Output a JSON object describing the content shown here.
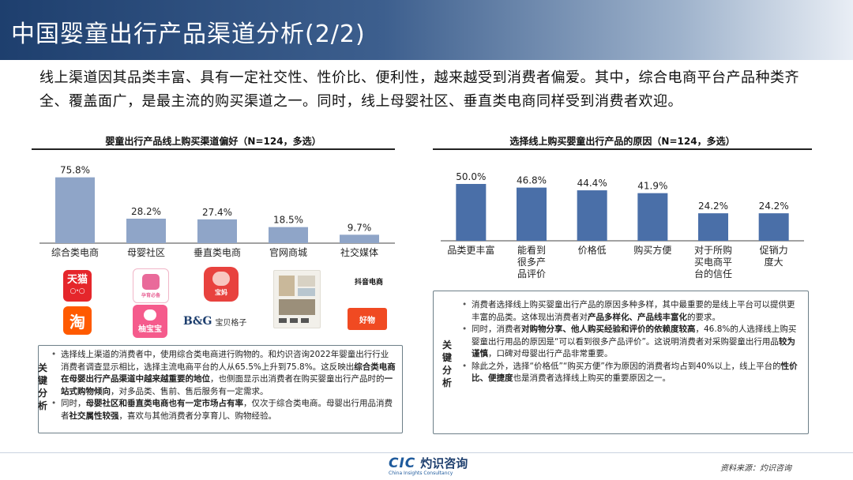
{
  "page_title": "中国婴童出行产品渠道分析(2/2)",
  "intro_text": "线上渠道因其品类丰富、具有一定社交性、性价比、便利性，越来越受到消费者偏爱。其中，综合电商平台产品种类齐全、覆盖面广，是最主流的购买渠道之一。同时，线上母婴社区、垂直类电商同样受到消费者欢迎。",
  "chart_data": [
    {
      "type": "bar",
      "title": "婴童出行产品线上购买渠道偏好（N=124，多选）",
      "categories": [
        "综合类电商",
        "母婴社区",
        "垂直类电商",
        "官网商城",
        "社交媒体"
      ],
      "values": [
        75.8,
        28.2,
        27.4,
        18.5,
        9.7
      ],
      "value_labels": [
        "75.8%",
        "28.2%",
        "27.4%",
        "18.5%",
        "9.7%"
      ],
      "color": "#8fa5c8",
      "ylim": [
        0,
        80
      ]
    },
    {
      "type": "bar",
      "title": "选择线上购买婴童出行产品的原因（N=124，多选）",
      "categories": [
        "品类更丰富",
        "能看到很多产品评价",
        "价格低",
        "购买方便",
        "对于所购买电商平台的信任",
        "促销力度大"
      ],
      "category_lines": [
        [
          "品类更丰富"
        ],
        [
          "能看到",
          "很多产",
          "品评价"
        ],
        [
          "价格低"
        ],
        [
          "购买方便"
        ],
        [
          "对于所购",
          "买电商平",
          "台的信任"
        ],
        [
          "促销力",
          "度大"
        ]
      ],
      "values": [
        50.0,
        46.8,
        44.4,
        41.9,
        24.2,
        24.2
      ],
      "value_labels": [
        "50.0%",
        "46.8%",
        "44.4%",
        "41.9%",
        "24.2%",
        "24.2%"
      ],
      "color": "#4a6fa8",
      "ylim": [
        0,
        50
      ]
    }
  ],
  "logos": {
    "tmall": "天猫",
    "tmall_sub": "○·○",
    "taobao": "淘",
    "mama": "孕育必备",
    "youzan": "柚宝宝",
    "pigmom": "宝妈",
    "bg": "B&G",
    "bg_name": "宝贝格子",
    "douyin": "抖音电商",
    "xhs": "好物"
  },
  "left_analysis": {
    "tag": [
      "关",
      "键",
      "分",
      "析"
    ],
    "p1_a": "选择线上渠道的消费者中，使用综合类电商进行购物的。和灼识咨询2022年婴童出行行业消费者调查显示相比，选择主流电商平台的人从65.5%上升到75.8%。这反映出",
    "p1_b": "综合类电商在母婴出行产品渠道中越来越重要的地位",
    "p1_c": "，也侧面显示出消费者在购买婴童出行产品时的",
    "p1_d": "一站式购物倾向",
    "p1_e": "，对多品类、售前、售后服务有一定需求。",
    "p2_a": "同时，",
    "p2_b": "母婴社区和垂直类电商也有一定市场占有率",
    "p2_c": "，仅次于综合类电商。母婴出行用品消费者",
    "p2_d": "社交属性较强",
    "p2_e": "，喜欢与其他消费者分享育儿、购物经验。"
  },
  "right_analysis": {
    "tag": [
      "关",
      "键",
      "分",
      "析"
    ],
    "p1_a": "消费者选择线上购买婴童出行产品的原因多种多样，其中最重要的是线上平台可以提供更丰富的品类。这体现出消费者对",
    "p1_b": "产品多样化、产品线丰富化",
    "p1_c": "的要求。",
    "p2_a": "同时，消费者",
    "p2_b": "对购物分享、他人购买经验和评价的依赖度较高",
    "p2_c": "，46.8%的人选择线上购买婴童出行用品的原因是“可以看到很多产品评价”。这说明消费者对采购婴童出行用品",
    "p2_d": "较为谨慎",
    "p2_e": "，口碑对母婴出行产品非常重要。",
    "p3_a": "除此之外，选择“价格低”“购买方便”作为原因的消费者均占到40%以上，线上平台的",
    "p3_b": "性价比、便捷度",
    "p3_c": "也是消费者选择线上购买的重要原因之一。"
  },
  "footer": {
    "brand_mark": "CIC",
    "brand_cn": "灼识咨询",
    "brand_en": "China Insights Consultancy",
    "source": "资料来源：灼识咨询"
  }
}
